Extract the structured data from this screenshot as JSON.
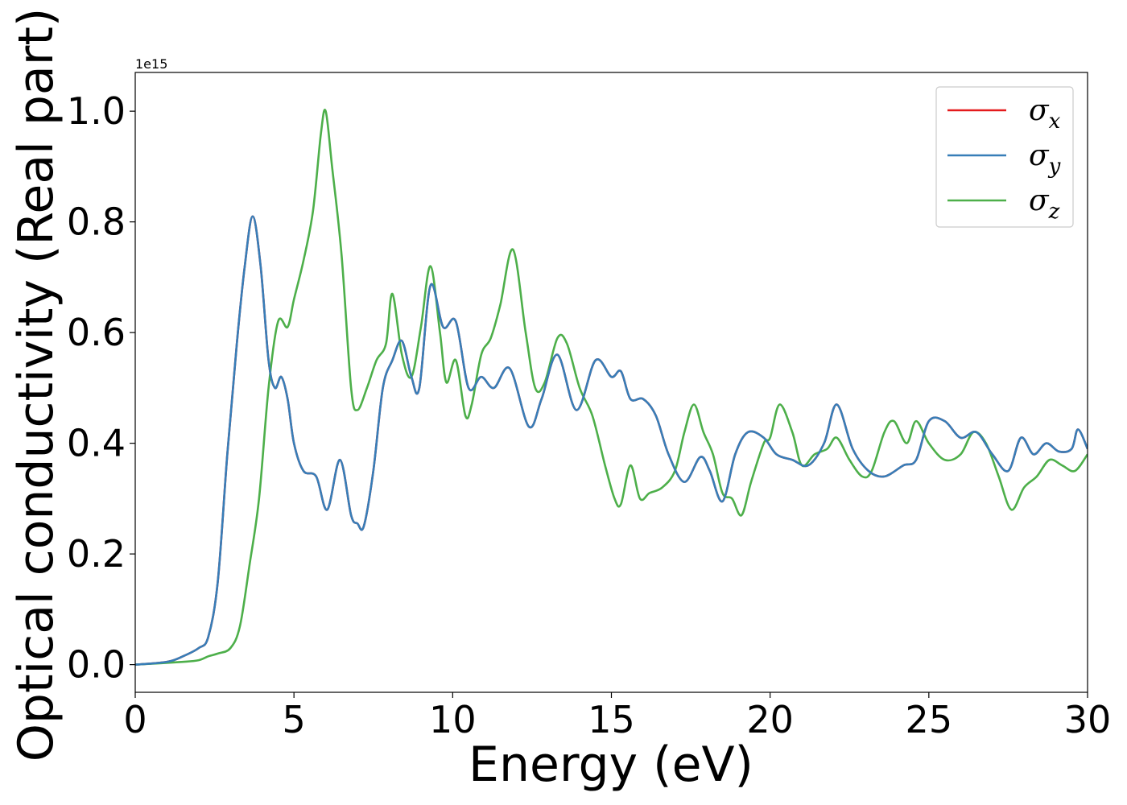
{
  "chart_data": {
    "type": "line",
    "xlabel": "Energy (eV)",
    "ylabel": "Optical conductivity (Real part)",
    "y_offset_text": "1e15",
    "xlim": [
      0,
      30
    ],
    "ylim": [
      -0.05,
      1.07
    ],
    "x_ticks": [
      0,
      5,
      10,
      15,
      20,
      25,
      30
    ],
    "y_ticks": [
      0.0,
      0.2,
      0.4,
      0.6,
      0.8,
      1.0
    ],
    "x_tick_labels": [
      "0",
      "5",
      "10",
      "15",
      "20",
      "25",
      "30"
    ],
    "y_tick_labels": [
      "0.0",
      "0.2",
      "0.4",
      "0.6",
      "0.8",
      "1.0"
    ],
    "legend_position": "top-right",
    "grid": false,
    "series": [
      {
        "name": "σx",
        "symbol": "σ",
        "subscript": "x",
        "color": "#e41a1c",
        "x": [
          0,
          1.0,
          1.5,
          2.0,
          2.3,
          2.6,
          2.9,
          3.2,
          3.45,
          3.7,
          3.95,
          4.2,
          4.4,
          4.6,
          4.8,
          5.0,
          5.3,
          5.7,
          6.05,
          6.45,
          6.8,
          7.0,
          7.2,
          7.5,
          7.8,
          8.1,
          8.4,
          8.7,
          8.95,
          9.3,
          9.7,
          10.1,
          10.5,
          10.9,
          11.3,
          11.8,
          12.4,
          12.8,
          13.3,
          13.9,
          14.5,
          15.0,
          15.3,
          15.6,
          16.0,
          16.4,
          16.8,
          17.3,
          17.8,
          18.1,
          18.5,
          18.9,
          19.3,
          19.8,
          20.2,
          20.7,
          21.2,
          21.7,
          22.1,
          22.6,
          23.1,
          23.6,
          24.2,
          24.6,
          25.0,
          25.5,
          26.0,
          26.5,
          27.0,
          27.5,
          27.9,
          28.3,
          28.7,
          29.1,
          29.5,
          29.7,
          30.0
        ],
        "y": [
          0.0,
          0.005,
          0.015,
          0.03,
          0.05,
          0.15,
          0.38,
          0.58,
          0.72,
          0.81,
          0.72,
          0.55,
          0.5,
          0.52,
          0.48,
          0.4,
          0.35,
          0.34,
          0.28,
          0.37,
          0.27,
          0.255,
          0.25,
          0.35,
          0.5,
          0.55,
          0.585,
          0.52,
          0.5,
          0.685,
          0.61,
          0.62,
          0.5,
          0.52,
          0.5,
          0.535,
          0.43,
          0.48,
          0.56,
          0.46,
          0.55,
          0.52,
          0.53,
          0.48,
          0.48,
          0.45,
          0.38,
          0.33,
          0.375,
          0.35,
          0.295,
          0.38,
          0.42,
          0.41,
          0.38,
          0.37,
          0.36,
          0.4,
          0.47,
          0.39,
          0.35,
          0.34,
          0.36,
          0.37,
          0.44,
          0.44,
          0.41,
          0.42,
          0.38,
          0.35,
          0.41,
          0.38,
          0.4,
          0.385,
          0.39,
          0.425,
          0.39
        ]
      },
      {
        "name": "σy",
        "symbol": "σ",
        "subscript": "y",
        "color": "#377eb8",
        "x": [
          0,
          1.0,
          1.5,
          2.0,
          2.3,
          2.6,
          2.9,
          3.2,
          3.45,
          3.7,
          3.95,
          4.2,
          4.4,
          4.6,
          4.8,
          5.0,
          5.3,
          5.7,
          6.05,
          6.45,
          6.8,
          7.0,
          7.2,
          7.5,
          7.8,
          8.1,
          8.4,
          8.7,
          8.95,
          9.3,
          9.7,
          10.1,
          10.5,
          10.9,
          11.3,
          11.8,
          12.4,
          12.8,
          13.3,
          13.9,
          14.5,
          15.0,
          15.3,
          15.6,
          16.0,
          16.4,
          16.8,
          17.3,
          17.8,
          18.1,
          18.5,
          18.9,
          19.3,
          19.8,
          20.2,
          20.7,
          21.2,
          21.7,
          22.1,
          22.6,
          23.1,
          23.6,
          24.2,
          24.6,
          25.0,
          25.5,
          26.0,
          26.5,
          27.0,
          27.5,
          27.9,
          28.3,
          28.7,
          29.1,
          29.5,
          29.7,
          30.0
        ],
        "y": [
          0.0,
          0.005,
          0.015,
          0.03,
          0.05,
          0.15,
          0.38,
          0.58,
          0.72,
          0.81,
          0.72,
          0.55,
          0.5,
          0.52,
          0.48,
          0.4,
          0.35,
          0.34,
          0.28,
          0.37,
          0.27,
          0.255,
          0.25,
          0.35,
          0.5,
          0.55,
          0.585,
          0.52,
          0.5,
          0.685,
          0.61,
          0.62,
          0.5,
          0.52,
          0.5,
          0.535,
          0.43,
          0.48,
          0.56,
          0.46,
          0.55,
          0.52,
          0.53,
          0.48,
          0.48,
          0.45,
          0.38,
          0.33,
          0.375,
          0.35,
          0.295,
          0.38,
          0.42,
          0.41,
          0.38,
          0.37,
          0.36,
          0.4,
          0.47,
          0.39,
          0.35,
          0.34,
          0.36,
          0.37,
          0.44,
          0.44,
          0.41,
          0.42,
          0.38,
          0.35,
          0.41,
          0.38,
          0.4,
          0.385,
          0.39,
          0.425,
          0.39
        ]
      },
      {
        "name": "σz",
        "symbol": "σ",
        "subscript": "z",
        "color": "#4daf4a",
        "x": [
          0,
          1.5,
          2.0,
          2.3,
          2.6,
          3.0,
          3.3,
          3.6,
          3.9,
          4.2,
          4.5,
          4.8,
          5.0,
          5.3,
          5.6,
          5.85,
          6.0,
          6.2,
          6.5,
          6.8,
          7.0,
          7.3,
          7.6,
          7.9,
          8.1,
          8.4,
          8.7,
          9.0,
          9.3,
          9.6,
          9.8,
          10.1,
          10.4,
          10.6,
          10.9,
          11.2,
          11.5,
          11.9,
          12.3,
          12.6,
          12.9,
          13.3,
          13.6,
          14.0,
          14.4,
          14.8,
          15.1,
          15.3,
          15.6,
          15.9,
          16.2,
          16.6,
          17.0,
          17.3,
          17.6,
          17.9,
          18.2,
          18.5,
          18.8,
          19.1,
          19.4,
          19.8,
          20.0,
          20.3,
          20.7,
          21.0,
          21.4,
          21.8,
          22.1,
          22.5,
          22.9,
          23.2,
          23.6,
          23.9,
          24.3,
          24.6,
          25.0,
          25.5,
          26.0,
          26.4,
          26.8,
          27.2,
          27.6,
          28.0,
          28.4,
          28.8,
          29.2,
          29.6,
          30.0
        ],
        "y": [
          0.0,
          0.005,
          0.008,
          0.015,
          0.02,
          0.03,
          0.07,
          0.18,
          0.3,
          0.5,
          0.62,
          0.61,
          0.66,
          0.73,
          0.82,
          0.96,
          1.0,
          0.9,
          0.74,
          0.5,
          0.46,
          0.5,
          0.55,
          0.58,
          0.67,
          0.56,
          0.52,
          0.61,
          0.72,
          0.6,
          0.51,
          0.55,
          0.45,
          0.47,
          0.56,
          0.59,
          0.65,
          0.75,
          0.6,
          0.5,
          0.51,
          0.59,
          0.58,
          0.5,
          0.45,
          0.36,
          0.3,
          0.29,
          0.36,
          0.3,
          0.31,
          0.32,
          0.35,
          0.42,
          0.47,
          0.42,
          0.38,
          0.31,
          0.3,
          0.27,
          0.33,
          0.4,
          0.41,
          0.47,
          0.42,
          0.36,
          0.38,
          0.39,
          0.41,
          0.37,
          0.34,
          0.35,
          0.42,
          0.44,
          0.4,
          0.44,
          0.4,
          0.37,
          0.38,
          0.42,
          0.4,
          0.34,
          0.28,
          0.32,
          0.34,
          0.37,
          0.36,
          0.35,
          0.38
        ]
      }
    ]
  }
}
